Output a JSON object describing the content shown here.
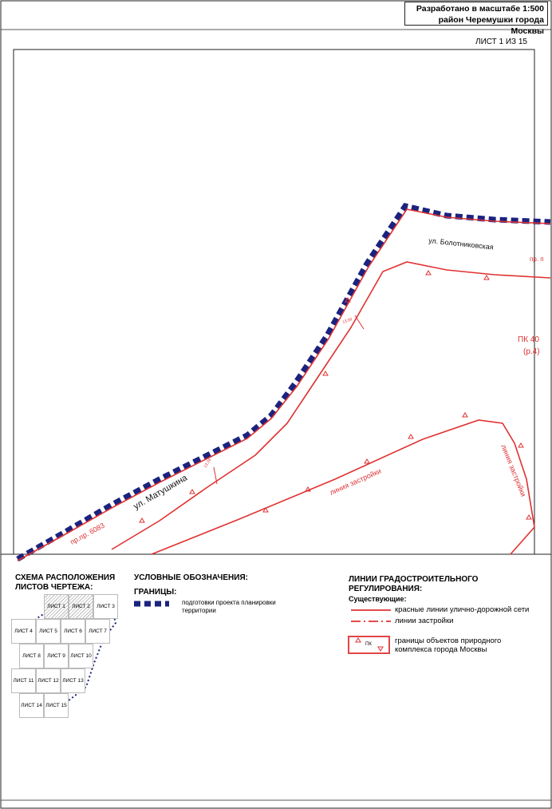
{
  "stamp": {
    "line1": "Разработано в масштабе 1:500",
    "line2": "район Черемушки города Москвы"
  },
  "sheet_number": "ЛИСТ 1 ИЗ 15",
  "map_labels": {
    "street_bolotnikovskaya": "ул. Болотниковская",
    "street_matushkina": "ул. Матушкина",
    "passage_6083": "пр.пр. 6083",
    "pp_partial": "пр. п",
    "pk40_line1": "ПК 40",
    "pk40_line2": "(р.4)",
    "building_line_1": "линия застройки",
    "building_line_2": "линия застройки",
    "picket_1": "13.36",
    "picket_2": "13.50"
  },
  "scheme": {
    "title_line1": "СХЕМА РАСПОЛОЖЕНИЯ",
    "title_line2": "ЛИСТОВ ЧЕРТЕЖА:",
    "sheets": [
      "ЛИСТ 1",
      "ЛИСТ 2",
      "ЛИСТ 3",
      "ЛИСТ 4",
      "ЛИСТ 5",
      "ЛИСТ 6",
      "ЛИСТ 7",
      "ЛИСТ 8",
      "ЛИСТ 9",
      "ЛИСТ 10",
      "ЛИСТ 11",
      "ЛИСТ 12",
      "ЛИСТ 13",
      "ЛИСТ 14",
      "ЛИСТ 15"
    ]
  },
  "legend": {
    "title": "УСЛОВНЫЕ ОБОЗНАЧЕНИЯ:",
    "boundaries_heading": "ГРАНИЦЫ:",
    "boundary_item": "подготовки проекта планировки территории",
    "boundary_color": "#1a237e"
  },
  "regulation": {
    "title_line1": "ЛИНИИ ГРАДОСТРОИТЕЛЬНОГО",
    "title_line2": "РЕГУЛИРОВАНИЯ:",
    "existing_heading": "Существующие:",
    "red_lines": "красные линии улично-дорожной сети",
    "building_lines": "линии застройки",
    "nature_boundary_line1": "границы объектов природного",
    "nature_boundary_line2": "комплекса города Москвы",
    "pk_sample": "ПК",
    "red_color": "#e03131"
  }
}
